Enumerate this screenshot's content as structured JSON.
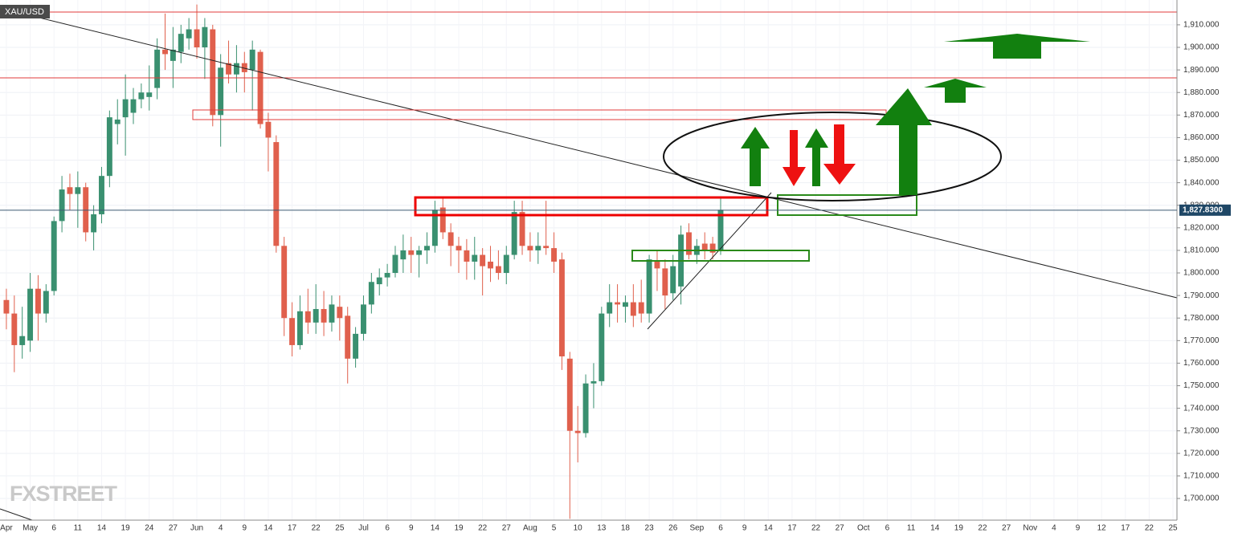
{
  "chart_data": {
    "type": "candlestick",
    "title": "XAU/USD",
    "watermark": "FXSTREET",
    "up_color": "#3a9070",
    "down_color": "#e0604d",
    "categories": [
      "Apr",
      null,
      null,
      "May",
      null,
      null,
      "6",
      null,
      null,
      "11",
      null,
      null,
      "14",
      null,
      null,
      "19",
      null,
      null,
      "24",
      null,
      null,
      "27",
      null,
      null,
      "Jun",
      null,
      null,
      "4",
      null,
      null,
      "9",
      null,
      null,
      "14",
      null,
      null,
      "17",
      null,
      null,
      "22",
      null,
      null,
      "25",
      null,
      null,
      "Jul",
      null,
      null,
      "6",
      null,
      null,
      "9",
      null,
      null,
      "14",
      null,
      null,
      "19",
      null,
      null,
      "22",
      null,
      null,
      "27",
      null,
      null,
      "Aug",
      null,
      null,
      "5",
      null,
      null,
      "10",
      null,
      null,
      "13",
      null,
      null,
      "18",
      null,
      null,
      "23",
      null,
      null,
      "26",
      null,
      null,
      "Sep",
      null,
      null,
      "6",
      null,
      null,
      "9",
      null,
      null,
      "14",
      null,
      null,
      "17",
      null,
      null,
      "22",
      null,
      null,
      "27",
      null,
      null,
      "Oct",
      null,
      null,
      "6",
      null,
      null,
      "11",
      null,
      null,
      "14",
      null,
      null,
      "19",
      null,
      null,
      "22",
      null,
      null,
      "27",
      null,
      null,
      "Nov",
      null,
      null,
      "4",
      null,
      null,
      "9",
      null,
      null,
      "12",
      null,
      null,
      "17",
      null,
      null,
      "22",
      null,
      null,
      "25"
    ],
    "open": [
      1788,
      1782,
      1768,
      1770,
      1793,
      1782,
      1792,
      1823,
      1838,
      1835,
      1838,
      1818,
      1826,
      1843,
      1866,
      1869,
      1871,
      1877,
      1878,
      1882,
      1899,
      1894,
      1898,
      1904,
      1908,
      1900,
      1908,
      1870,
      1893,
      1888,
      1893,
      1890,
      1898,
      1867,
      1858,
      1812,
      1780,
      1768,
      1783,
      1778,
      1784,
      1778,
      1785,
      1781,
      1762,
      1773,
      1786,
      1795,
      1798,
      1800,
      1806,
      1810,
      1808,
      1810,
      1812,
      1829,
      1818,
      1812,
      1810,
      1805,
      1808,
      1805,
      1803,
      1800,
      1808,
      1827,
      1812,
      1810,
      1812,
      1811,
      1806,
      1762,
      1730,
      1729,
      1751,
      1752,
      1782,
      1787,
      1785,
      1787,
      1787,
      1782,
      1805,
      1802,
      1791,
      1794,
      1818,
      1808,
      1813,
      1813,
      1810,
      null,
      null,
      null,
      null,
      null,
      null,
      null,
      null,
      null,
      null,
      null,
      null,
      null,
      null,
      null,
      null,
      null,
      null,
      null,
      null,
      null,
      null,
      null,
      null,
      null,
      null,
      null,
      null,
      null,
      null,
      null,
      null,
      null,
      null,
      null,
      null,
      null,
      null,
      null,
      null,
      null,
      null,
      null,
      null,
      null,
      null,
      null,
      null,
      null,
      null,
      null,
      null,
      null,
      null,
      null,
      null,
      null
    ],
    "high": [
      1793,
      1790,
      1785,
      1800,
      1799,
      1795,
      1825,
      1843,
      1844,
      1845,
      1840,
      1830,
      1847,
      1872,
      1877,
      1888,
      1882,
      1884,
      1892,
      1904,
      1915,
      1909,
      1910,
      1913,
      1919,
      1913,
      1910,
      1897,
      1903,
      1901,
      1898,
      1903,
      1899,
      1871,
      1861,
      1816,
      1787,
      1790,
      1793,
      1795,
      1792,
      1790,
      1790,
      1785,
      1776,
      1790,
      1800,
      1802,
      1804,
      1812,
      1817,
      1816,
      1812,
      1818,
      1832,
      1834,
      1822,
      1816,
      1815,
      1816,
      1811,
      1812,
      1810,
      1812,
      1832,
      1832,
      1818,
      1818,
      1832,
      1818,
      1809,
      1765,
      1741,
      1755,
      1760,
      1785,
      1795,
      1795,
      1790,
      1795,
      1797,
      1808,
      1810,
      1806,
      1808,
      1821,
      1822,
      1815,
      1818,
      1816,
      1834,
      null,
      null,
      null,
      null,
      null,
      null,
      null,
      null,
      null,
      null,
      null,
      null,
      null,
      null,
      null,
      null,
      null,
      null,
      null,
      null,
      null,
      null,
      null,
      null,
      null,
      null,
      null,
      null,
      null,
      null,
      null,
      null,
      null,
      null,
      null,
      null,
      null,
      null,
      null,
      null,
      null,
      null,
      null,
      null,
      null,
      null,
      null,
      null,
      null,
      null,
      null,
      null,
      null,
      null,
      null,
      null,
      null
    ],
    "low": [
      1775,
      1756,
      1762,
      1765,
      1770,
      1778,
      1790,
      1818,
      1828,
      1820,
      1814,
      1810,
      1822,
      1838,
      1857,
      1852,
      1866,
      1873,
      1872,
      1877,
      1890,
      1882,
      1893,
      1899,
      1895,
      1886,
      1865,
      1856,
      1884,
      1880,
      1880,
      1872,
      1864,
      1845,
      1809,
      1772,
      1763,
      1766,
      1773,
      1773,
      1772,
      1774,
      1770,
      1751,
      1758,
      1770,
      1782,
      1790,
      1794,
      1798,
      1800,
      1800,
      1798,
      1804,
      1809,
      1815,
      1803,
      1800,
      1797,
      1797,
      1790,
      1796,
      1797,
      1795,
      1806,
      1808,
      1805,
      1804,
      1808,
      1800,
      1757,
      1691,
      1716,
      1727,
      1740,
      1750,
      1776,
      1778,
      1778,
      1776,
      1778,
      1778,
      1792,
      1784,
      1788,
      1786,
      1806,
      1804,
      1806,
      1806,
      1808,
      null,
      null,
      null,
      null,
      null,
      null,
      null,
      null,
      null,
      null,
      null,
      null,
      null,
      null,
      null,
      null,
      null,
      null,
      null,
      null,
      null,
      null,
      null,
      null,
      null,
      null,
      null,
      null,
      null,
      null,
      null,
      null,
      null,
      null,
      null,
      null,
      null,
      null,
      null,
      null,
      null,
      null,
      null,
      null,
      null,
      null,
      null,
      null,
      null,
      null,
      null,
      null,
      null,
      null,
      null,
      null,
      null
    ],
    "close": [
      1782,
      1768,
      1772,
      1793,
      1782,
      1792,
      1823,
      1837,
      1835,
      1838,
      1818,
      1826,
      1843,
      1869,
      1868,
      1877,
      1877,
      1880,
      1880,
      1899,
      1897,
      1899,
      1906,
      1908,
      1900,
      1909,
      1870,
      1891,
      1888,
      1893,
      1889,
      1899,
      1866,
      1860,
      1812,
      1780,
      1768,
      1783,
      1778,
      1784,
      1778,
      1786,
      1780,
      1762,
      1773,
      1786,
      1796,
      1798,
      1800,
      1808,
      1810,
      1808,
      1810,
      1812,
      1828,
      1818,
      1812,
      1810,
      1805,
      1808,
      1803,
      1802,
      1800,
      1808,
      1827,
      1812,
      1810,
      1812,
      1811,
      1805,
      1763,
      1730,
      1729,
      1751,
      1752,
      1782,
      1787,
      1786,
      1787,
      1781,
      1782,
      1806,
      1802,
      1790,
      1803,
      1817,
      1808,
      1812,
      1810,
      1809,
      1828,
      null,
      null,
      null,
      null,
      null,
      null,
      null,
      null,
      null,
      null,
      null,
      null,
      null,
      null,
      null,
      null,
      null,
      null,
      null,
      null,
      null,
      null,
      null,
      null,
      null,
      null,
      null,
      null,
      null,
      null,
      null,
      null,
      null,
      null,
      null,
      null,
      null,
      null,
      null,
      null,
      null,
      null,
      null,
      null,
      null,
      null,
      null,
      null,
      null,
      null,
      null,
      null,
      null,
      null,
      null,
      null,
      null
    ],
    "last_price": {
      "value": 1827.83,
      "label": "1,827.8300"
    },
    "ylim": [
      1690.4,
      1921
    ],
    "yticks": [
      {
        "value": 1700,
        "label": "1,700.000"
      },
      {
        "value": 1710,
        "label": "1,710.000"
      },
      {
        "value": 1720,
        "label": "1,720.000"
      },
      {
        "value": 1730,
        "label": "1,730.000"
      },
      {
        "value": 1740,
        "label": "1,740.000"
      },
      {
        "value": 1750,
        "label": "1,750.000"
      },
      {
        "value": 1760,
        "label": "1,760.000"
      },
      {
        "value": 1770,
        "label": "1,770.000"
      },
      {
        "value": 1780,
        "label": "1,780.000"
      },
      {
        "value": 1790,
        "label": "1,790.000"
      },
      {
        "value": 1800,
        "label": "1,800.000"
      },
      {
        "value": 1810,
        "label": "1,810.000"
      },
      {
        "value": 1820,
        "label": "1,820.000"
      },
      {
        "value": 1830,
        "label": "1,830.000"
      },
      {
        "value": 1840,
        "label": "1,840.000"
      },
      {
        "value": 1850,
        "label": "1,850.000"
      },
      {
        "value": 1860,
        "label": "1,860.000"
      },
      {
        "value": 1870,
        "label": "1,870.000"
      },
      {
        "value": 1880,
        "label": "1,880.000"
      },
      {
        "value": 1890,
        "label": "1,890.000"
      },
      {
        "value": 1900,
        "label": "1,900.000"
      },
      {
        "value": 1910,
        "label": "1,910.000"
      }
    ],
    "grid": true
  }
}
